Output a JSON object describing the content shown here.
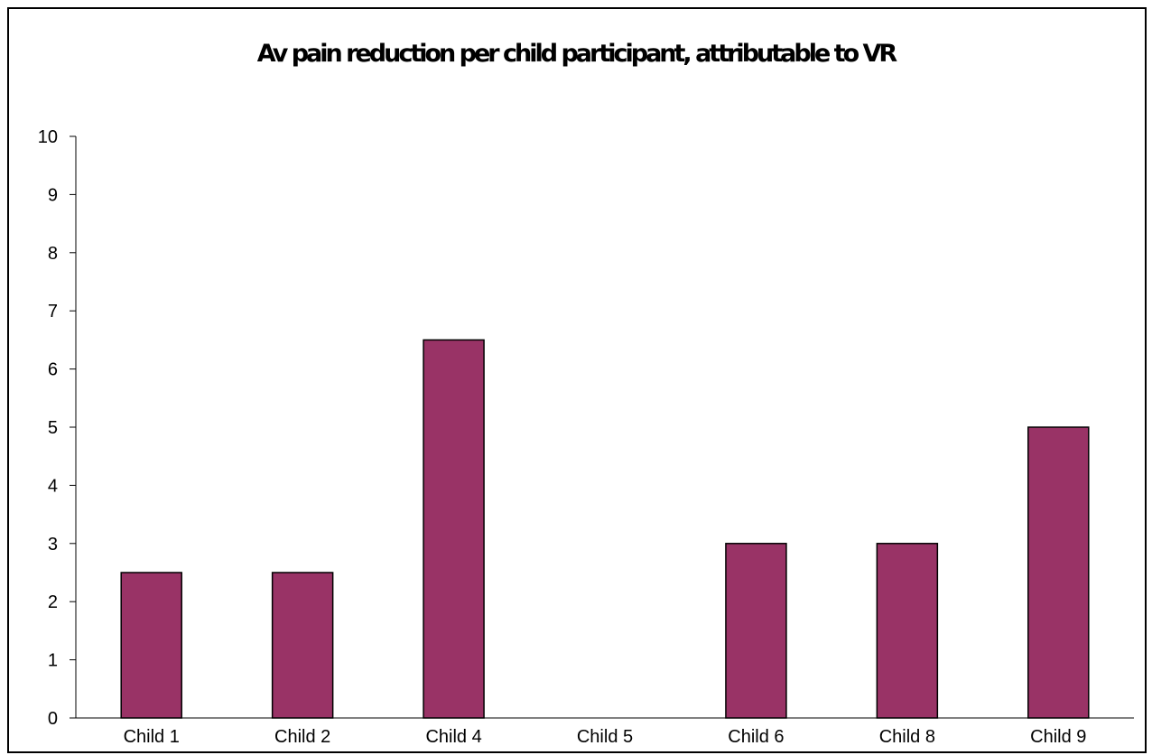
{
  "chart_data": {
    "type": "bar",
    "title": "Av pain reduction per child participant, attributable to VR",
    "categories": [
      "Child 1",
      "Child 2",
      "Child 4",
      "Child 5",
      "Child 6",
      "Child 8",
      "Child 9"
    ],
    "values": [
      2.5,
      2.5,
      6.5,
      0,
      3,
      3,
      5
    ],
    "ylim": [
      0,
      10
    ],
    "yticks": [
      "0",
      "1",
      "2",
      "3",
      "4",
      "5",
      "6",
      "7",
      "8",
      "9",
      "10"
    ],
    "xlabel": "",
    "ylabel": "",
    "grid": false,
    "legend": "none",
    "bar_color": "#993366",
    "bar_edge_color": "#000000"
  }
}
